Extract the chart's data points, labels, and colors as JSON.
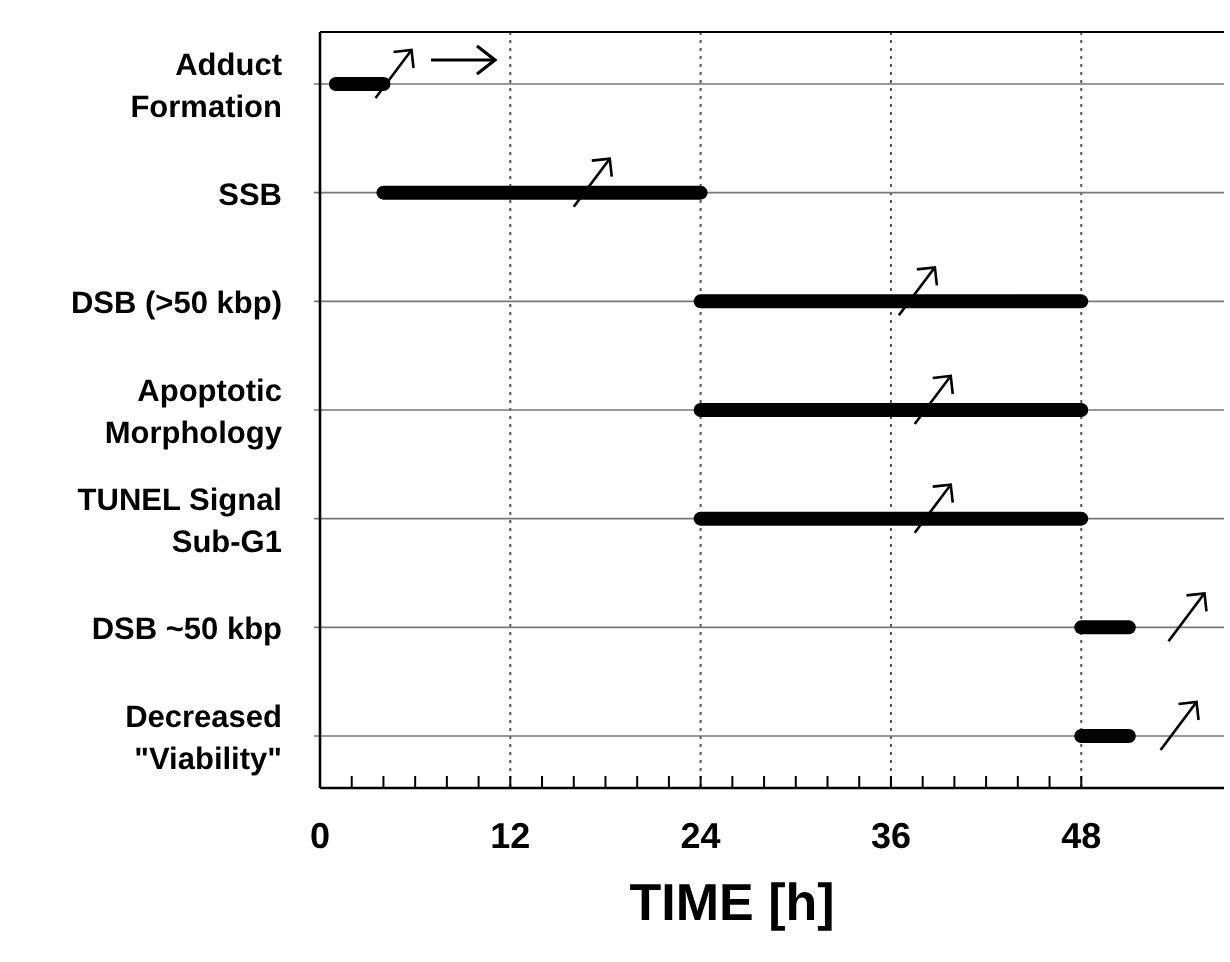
{
  "chart_data": {
    "type": "bar",
    "orientation": "horizontal",
    "xlabel": "TIME [h]",
    "categories": [
      "Adduct Formation",
      "SSB",
      "DSB (>50 kbp)",
      "Apoptotic Morphology",
      "TUNEL Signal Sub-G1",
      "DSB ~50 kbp",
      "Decreased \"Viability\""
    ],
    "base": [
      1,
      4,
      24,
      24,
      24,
      48,
      48
    ],
    "values": [
      3,
      20,
      24,
      24,
      24,
      3,
      3
    ],
    "color": "#000000",
    "xlim": [
      0,
      57
    ],
    "xticks": [
      0,
      {
        "value": 2,
        "label": null
      },
      {
        "value": 4,
        "label": null
      },
      {
        "value": 6,
        "label": null
      },
      {
        "value": 8,
        "label": null
      },
      {
        "value": 10,
        "label": null
      },
      12,
      {
        "value": 14,
        "label": null
      },
      {
        "value": 16,
        "label": null
      },
      {
        "value": 18,
        "label": null
      },
      {
        "value": 20,
        "label": null
      },
      {
        "value": 22,
        "label": null
      },
      24,
      {
        "value": 26,
        "label": null
      },
      {
        "value": 28,
        "label": null
      },
      {
        "value": 30,
        "label": null
      },
      {
        "value": 32,
        "label": null
      },
      {
        "value": 34,
        "label": null
      },
      36,
      {
        "value": 38,
        "label": null
      },
      {
        "value": 40,
        "label": null
      },
      {
        "value": 42,
        "label": null
      },
      {
        "value": 44,
        "label": null
      },
      {
        "value": 46,
        "label": null
      },
      48
    ],
    "grid": true
  }
}
